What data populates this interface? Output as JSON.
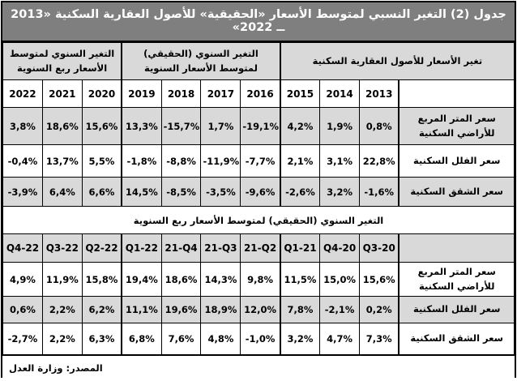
{
  "title": "جدول (2) التغير النسبي لمتوسط الأسعار «الحقيقية» للأصول العقارية السكنية «⁦2013 ــ 2022⁩»",
  "colors": {
    "title_bg": "#7f7f7f",
    "title_text": "#ffffff",
    "shaded_row_bg": "#d9d9d9",
    "border": "#000000"
  },
  "annual_section": {
    "groups": [
      {
        "label": "التغير السنوي لمتوسط الأسعار ربع السنوية",
        "span": 3
      },
      {
        "label": "التغير السنوي (الحقيقي) لمتوسط الأسعار السنوية",
        "span": 4
      },
      {
        "label": "تغير الأسعار للأصول العقارية السكنية",
        "span": 4
      }
    ],
    "year_columns": [
      "2022",
      "2021",
      "2020",
      "2019",
      "2018",
      "2017",
      "2016",
      "2015",
      "2014",
      "2013"
    ],
    "rows": [
      {
        "label": "سعر المتر المربع للأراضي السكنية",
        "values": [
          "3,8%",
          "18,6%",
          "15,6%",
          "13,3%",
          "-15,7%",
          "1,7%",
          "-19,1%",
          "4,2%",
          "1,9%",
          "0,8%"
        ]
      },
      {
        "label": "سعر الفلل السكنية",
        "values": [
          "-0,4%",
          "13,7%",
          "5,5%",
          "-1,8%",
          "-8,8%",
          "-11,9%",
          "-7,7%",
          "2,1%",
          "3,1%",
          "22,8%"
        ]
      },
      {
        "label": "سعر الشقق السكنية",
        "values": [
          "-3,9%",
          "6,4%",
          "6,6%",
          "14,5%",
          "-8,5%",
          "-3,5%",
          "-9,6%",
          "-2,6%",
          "3,2%",
          "-1,6%"
        ]
      }
    ]
  },
  "quarterly_section": {
    "header": "التغير السنوي (الحقيقي) لمتوسط الأسعار ربع السنوية",
    "quarter_columns": [
      "Q4-22",
      "Q3-22",
      "Q2-22",
      "Q1-22",
      "21-Q4",
      "21-Q3",
      "21-Q2",
      "Q1-21",
      "Q4-20",
      "Q3-20"
    ],
    "rows": [
      {
        "label": "سعر المتر المربع للأراضي السكنية",
        "values": [
          "4,9%",
          "11,9%",
          "15,8%",
          "19,4%",
          "18,6%",
          "14,3%",
          "9,8%",
          "11,5%",
          "15,0%",
          "15,6%"
        ]
      },
      {
        "label": "سعر الفلل السكنية",
        "values": [
          "0,6%",
          "2,2%",
          "6,2%",
          "11,1%",
          "19,6%",
          "18,9%",
          "12,0%",
          "7,8%",
          "-2,1%",
          "0,2%"
        ]
      },
      {
        "label": "سعر الشقق السكنية",
        "values": [
          "-2,7%",
          "2,2%",
          "6,3%",
          "6,8%",
          "7,6%",
          "4,8%",
          "-1,0%",
          "3,2%",
          "4,7%",
          "7,3%"
        ]
      }
    ]
  },
  "footer": {
    "source": "المصدر: وزارة العدل"
  }
}
